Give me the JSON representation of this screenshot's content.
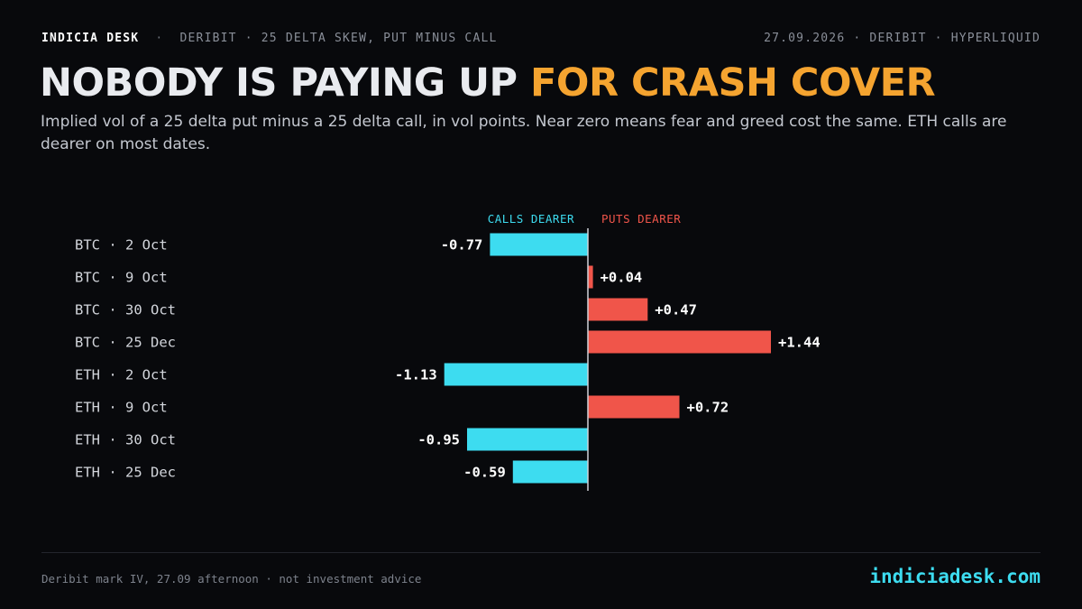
{
  "header": {
    "brand": "INDICIA DESK",
    "context": "DERIBIT · 25 DELTA SKEW, PUT MINUS CALL",
    "meta": "27.09.2026 · DERIBIT · HYPERLIQUID",
    "separator": "·"
  },
  "headline": {
    "lead": "NOBODY IS PAYING UP ",
    "accent": "FOR CRASH COVER"
  },
  "subtitle": "Implied vol of a 25 delta put minus a 25 delta call, in vol points. Near zero means fear and greed cost the same. ETH calls are dearer on most dates.",
  "colors": {
    "background": "#08090c",
    "calls": "#3ddcf0",
    "puts": "#f0554a",
    "accent": "#f5a430",
    "axis": "#cfd3da"
  },
  "chart_data": {
    "type": "bar",
    "orientation": "horizontal",
    "categories": [
      "BTC · 2 Oct",
      "BTC · 9 Oct",
      "BTC · 30 Oct",
      "BTC · 25 Dec",
      "ETH · 2 Oct",
      "ETH · 9 Oct",
      "ETH · 30 Oct",
      "ETH · 25 Dec"
    ],
    "values": [
      -0.77,
      0.04,
      0.47,
      1.44,
      -1.13,
      0.72,
      -0.95,
      -0.59
    ],
    "value_labels": [
      "-0.77",
      "+0.04",
      "+0.47",
      "+1.44",
      "-1.13",
      "+0.72",
      "-0.95",
      "-0.59"
    ],
    "negative_label": "CALLS DEARER",
    "positive_label": "PUTS DEARER",
    "negative_color": "#3ddcf0",
    "positive_color": "#f0554a",
    "zero_line": true,
    "grid": false
  },
  "footer": {
    "note": "Deribit mark IV, 27.09 afternoon · not investment advice",
    "site": "indiciadesk.com"
  }
}
